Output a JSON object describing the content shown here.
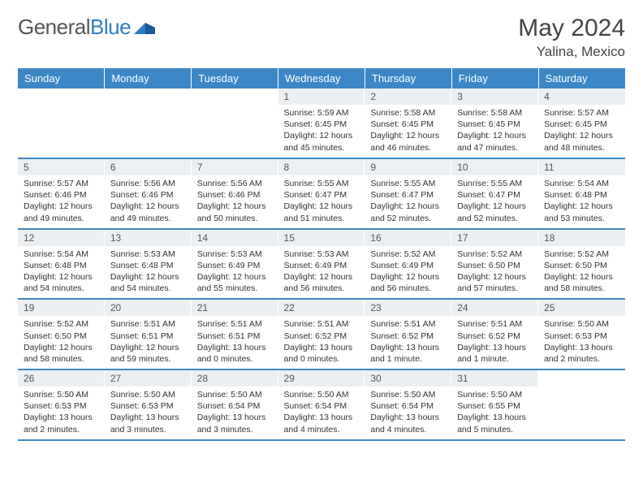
{
  "logo": {
    "part1": "General",
    "part2": "Blue"
  },
  "title": "May 2024",
  "location": "Yalina, Mexico",
  "colors": {
    "header_bg": "#3d87c7",
    "header_text": "#ffffff",
    "daynum_bg": "#eceff2",
    "text": "#333333",
    "logo_gray": "#555555",
    "logo_blue": "#2f7ec2",
    "border": "#3d87c7"
  },
  "weekdays": [
    "Sunday",
    "Monday",
    "Tuesday",
    "Wednesday",
    "Thursday",
    "Friday",
    "Saturday"
  ],
  "weeks": [
    [
      {
        "n": "",
        "sr": "",
        "ss": "",
        "dl": ""
      },
      {
        "n": "",
        "sr": "",
        "ss": "",
        "dl": ""
      },
      {
        "n": "",
        "sr": "",
        "ss": "",
        "dl": ""
      },
      {
        "n": "1",
        "sr": "Sunrise: 5:59 AM",
        "ss": "Sunset: 6:45 PM",
        "dl": "Daylight: 12 hours and 45 minutes."
      },
      {
        "n": "2",
        "sr": "Sunrise: 5:58 AM",
        "ss": "Sunset: 6:45 PM",
        "dl": "Daylight: 12 hours and 46 minutes."
      },
      {
        "n": "3",
        "sr": "Sunrise: 5:58 AM",
        "ss": "Sunset: 6:45 PM",
        "dl": "Daylight: 12 hours and 47 minutes."
      },
      {
        "n": "4",
        "sr": "Sunrise: 5:57 AM",
        "ss": "Sunset: 6:45 PM",
        "dl": "Daylight: 12 hours and 48 minutes."
      }
    ],
    [
      {
        "n": "5",
        "sr": "Sunrise: 5:57 AM",
        "ss": "Sunset: 6:46 PM",
        "dl": "Daylight: 12 hours and 49 minutes."
      },
      {
        "n": "6",
        "sr": "Sunrise: 5:56 AM",
        "ss": "Sunset: 6:46 PM",
        "dl": "Daylight: 12 hours and 49 minutes."
      },
      {
        "n": "7",
        "sr": "Sunrise: 5:56 AM",
        "ss": "Sunset: 6:46 PM",
        "dl": "Daylight: 12 hours and 50 minutes."
      },
      {
        "n": "8",
        "sr": "Sunrise: 5:55 AM",
        "ss": "Sunset: 6:47 PM",
        "dl": "Daylight: 12 hours and 51 minutes."
      },
      {
        "n": "9",
        "sr": "Sunrise: 5:55 AM",
        "ss": "Sunset: 6:47 PM",
        "dl": "Daylight: 12 hours and 52 minutes."
      },
      {
        "n": "10",
        "sr": "Sunrise: 5:55 AM",
        "ss": "Sunset: 6:47 PM",
        "dl": "Daylight: 12 hours and 52 minutes."
      },
      {
        "n": "11",
        "sr": "Sunrise: 5:54 AM",
        "ss": "Sunset: 6:48 PM",
        "dl": "Daylight: 12 hours and 53 minutes."
      }
    ],
    [
      {
        "n": "12",
        "sr": "Sunrise: 5:54 AM",
        "ss": "Sunset: 6:48 PM",
        "dl": "Daylight: 12 hours and 54 minutes."
      },
      {
        "n": "13",
        "sr": "Sunrise: 5:53 AM",
        "ss": "Sunset: 6:48 PM",
        "dl": "Daylight: 12 hours and 54 minutes."
      },
      {
        "n": "14",
        "sr": "Sunrise: 5:53 AM",
        "ss": "Sunset: 6:49 PM",
        "dl": "Daylight: 12 hours and 55 minutes."
      },
      {
        "n": "15",
        "sr": "Sunrise: 5:53 AM",
        "ss": "Sunset: 6:49 PM",
        "dl": "Daylight: 12 hours and 56 minutes."
      },
      {
        "n": "16",
        "sr": "Sunrise: 5:52 AM",
        "ss": "Sunset: 6:49 PM",
        "dl": "Daylight: 12 hours and 56 minutes."
      },
      {
        "n": "17",
        "sr": "Sunrise: 5:52 AM",
        "ss": "Sunset: 6:50 PM",
        "dl": "Daylight: 12 hours and 57 minutes."
      },
      {
        "n": "18",
        "sr": "Sunrise: 5:52 AM",
        "ss": "Sunset: 6:50 PM",
        "dl": "Daylight: 12 hours and 58 minutes."
      }
    ],
    [
      {
        "n": "19",
        "sr": "Sunrise: 5:52 AM",
        "ss": "Sunset: 6:50 PM",
        "dl": "Daylight: 12 hours and 58 minutes."
      },
      {
        "n": "20",
        "sr": "Sunrise: 5:51 AM",
        "ss": "Sunset: 6:51 PM",
        "dl": "Daylight: 12 hours and 59 minutes."
      },
      {
        "n": "21",
        "sr": "Sunrise: 5:51 AM",
        "ss": "Sunset: 6:51 PM",
        "dl": "Daylight: 13 hours and 0 minutes."
      },
      {
        "n": "22",
        "sr": "Sunrise: 5:51 AM",
        "ss": "Sunset: 6:52 PM",
        "dl": "Daylight: 13 hours and 0 minutes."
      },
      {
        "n": "23",
        "sr": "Sunrise: 5:51 AM",
        "ss": "Sunset: 6:52 PM",
        "dl": "Daylight: 13 hours and 1 minute."
      },
      {
        "n": "24",
        "sr": "Sunrise: 5:51 AM",
        "ss": "Sunset: 6:52 PM",
        "dl": "Daylight: 13 hours and 1 minute."
      },
      {
        "n": "25",
        "sr": "Sunrise: 5:50 AM",
        "ss": "Sunset: 6:53 PM",
        "dl": "Daylight: 13 hours and 2 minutes."
      }
    ],
    [
      {
        "n": "26",
        "sr": "Sunrise: 5:50 AM",
        "ss": "Sunset: 6:53 PM",
        "dl": "Daylight: 13 hours and 2 minutes."
      },
      {
        "n": "27",
        "sr": "Sunrise: 5:50 AM",
        "ss": "Sunset: 6:53 PM",
        "dl": "Daylight: 13 hours and 3 minutes."
      },
      {
        "n": "28",
        "sr": "Sunrise: 5:50 AM",
        "ss": "Sunset: 6:54 PM",
        "dl": "Daylight: 13 hours and 3 minutes."
      },
      {
        "n": "29",
        "sr": "Sunrise: 5:50 AM",
        "ss": "Sunset: 6:54 PM",
        "dl": "Daylight: 13 hours and 4 minutes."
      },
      {
        "n": "30",
        "sr": "Sunrise: 5:50 AM",
        "ss": "Sunset: 6:54 PM",
        "dl": "Daylight: 13 hours and 4 minutes."
      },
      {
        "n": "31",
        "sr": "Sunrise: 5:50 AM",
        "ss": "Sunset: 6:55 PM",
        "dl": "Daylight: 13 hours and 5 minutes."
      },
      {
        "n": "",
        "sr": "",
        "ss": "",
        "dl": ""
      }
    ]
  ]
}
